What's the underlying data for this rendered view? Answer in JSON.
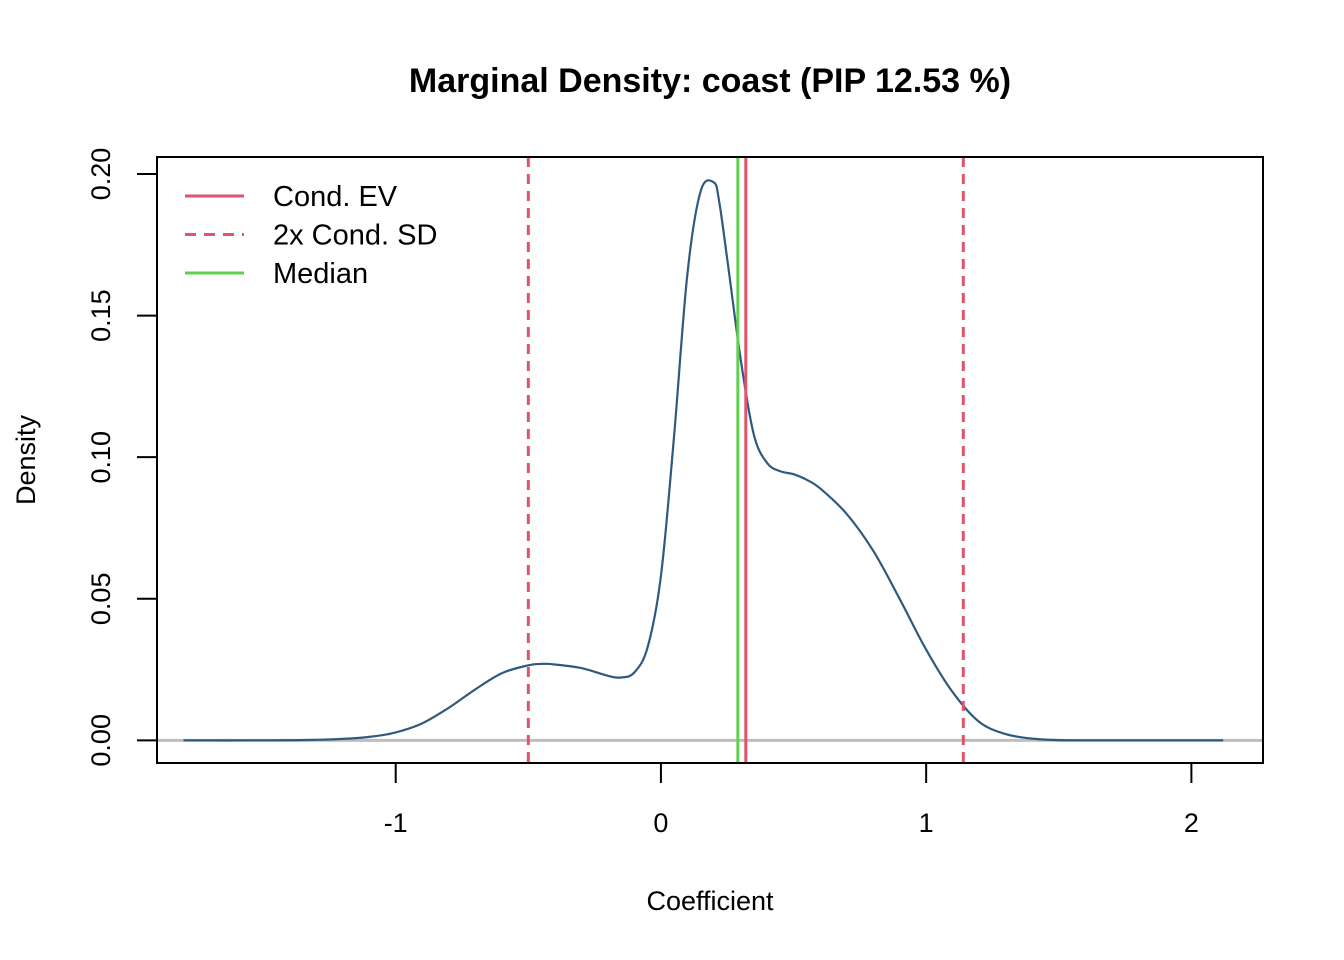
{
  "chart_data": {
    "type": "line",
    "title": "Marginal Density: coast (PIP 12.53 %)",
    "xlabel": "Coefficient",
    "ylabel": "Density",
    "xlim": [
      -1.9,
      2.27
    ],
    "ylim": [
      -0.008,
      0.206
    ],
    "x_ticks": [
      -1,
      0,
      1,
      2
    ],
    "x_tick_labels": [
      "-1",
      "0",
      "1",
      "2"
    ],
    "y_ticks": [
      0.0,
      0.05,
      0.1,
      0.15,
      0.2
    ],
    "y_tick_labels": [
      "0.00",
      "0.05",
      "0.10",
      "0.15",
      "0.20"
    ],
    "grid": false,
    "legend_position": "top-left",
    "density": {
      "x": [
        -1.8,
        -1.5,
        -1.3,
        -1.2,
        -1.1,
        -1.0,
        -0.9,
        -0.8,
        -0.7,
        -0.6,
        -0.5,
        -0.45,
        -0.4,
        -0.3,
        -0.2,
        -0.15,
        -0.1,
        -0.05,
        0.0,
        0.05,
        0.1,
        0.15,
        0.2,
        0.22,
        0.25,
        0.3,
        0.35,
        0.4,
        0.45,
        0.5,
        0.55,
        0.6,
        0.7,
        0.8,
        0.9,
        1.0,
        1.1,
        1.2,
        1.3,
        1.4,
        1.5,
        1.6,
        1.8,
        2.0,
        2.12
      ],
      "y": [
        0.0,
        0.0,
        0.0002,
        0.0005,
        0.0012,
        0.0028,
        0.006,
        0.0115,
        0.018,
        0.0237,
        0.0265,
        0.027,
        0.0268,
        0.0255,
        0.0228,
        0.0222,
        0.024,
        0.033,
        0.058,
        0.108,
        0.165,
        0.194,
        0.197,
        0.19,
        0.17,
        0.135,
        0.108,
        0.098,
        0.095,
        0.094,
        0.092,
        0.089,
        0.08,
        0.067,
        0.05,
        0.032,
        0.017,
        0.0065,
        0.0022,
        0.0006,
        0.0001,
        0.0,
        0.0,
        0.0,
        0.0
      ]
    },
    "baseline": 0.0,
    "lines": [
      {
        "name": "Cond. EV",
        "x": 0.32,
        "style": "solid",
        "color": "#DF536B"
      },
      {
        "name": "2x Cond. SD",
        "x": -0.5,
        "style": "dashed",
        "color": "#DF536B"
      },
      {
        "name": "2x Cond. SD",
        "x": 1.14,
        "style": "dashed",
        "color": "#DF536B"
      },
      {
        "name": "Median",
        "x": 0.29,
        "style": "solid",
        "color": "#61D04F"
      }
    ],
    "legend": [
      {
        "label": "Cond. EV",
        "style": "solid",
        "color": "#DF536B"
      },
      {
        "label": "2x Cond. SD",
        "style": "dashed",
        "color": "#DF536B"
      },
      {
        "label": "Median",
        "style": "solid",
        "color": "#61D04F"
      }
    ],
    "colors": {
      "density": "#2F5A7F",
      "baseline": "#BEBEBE"
    }
  }
}
